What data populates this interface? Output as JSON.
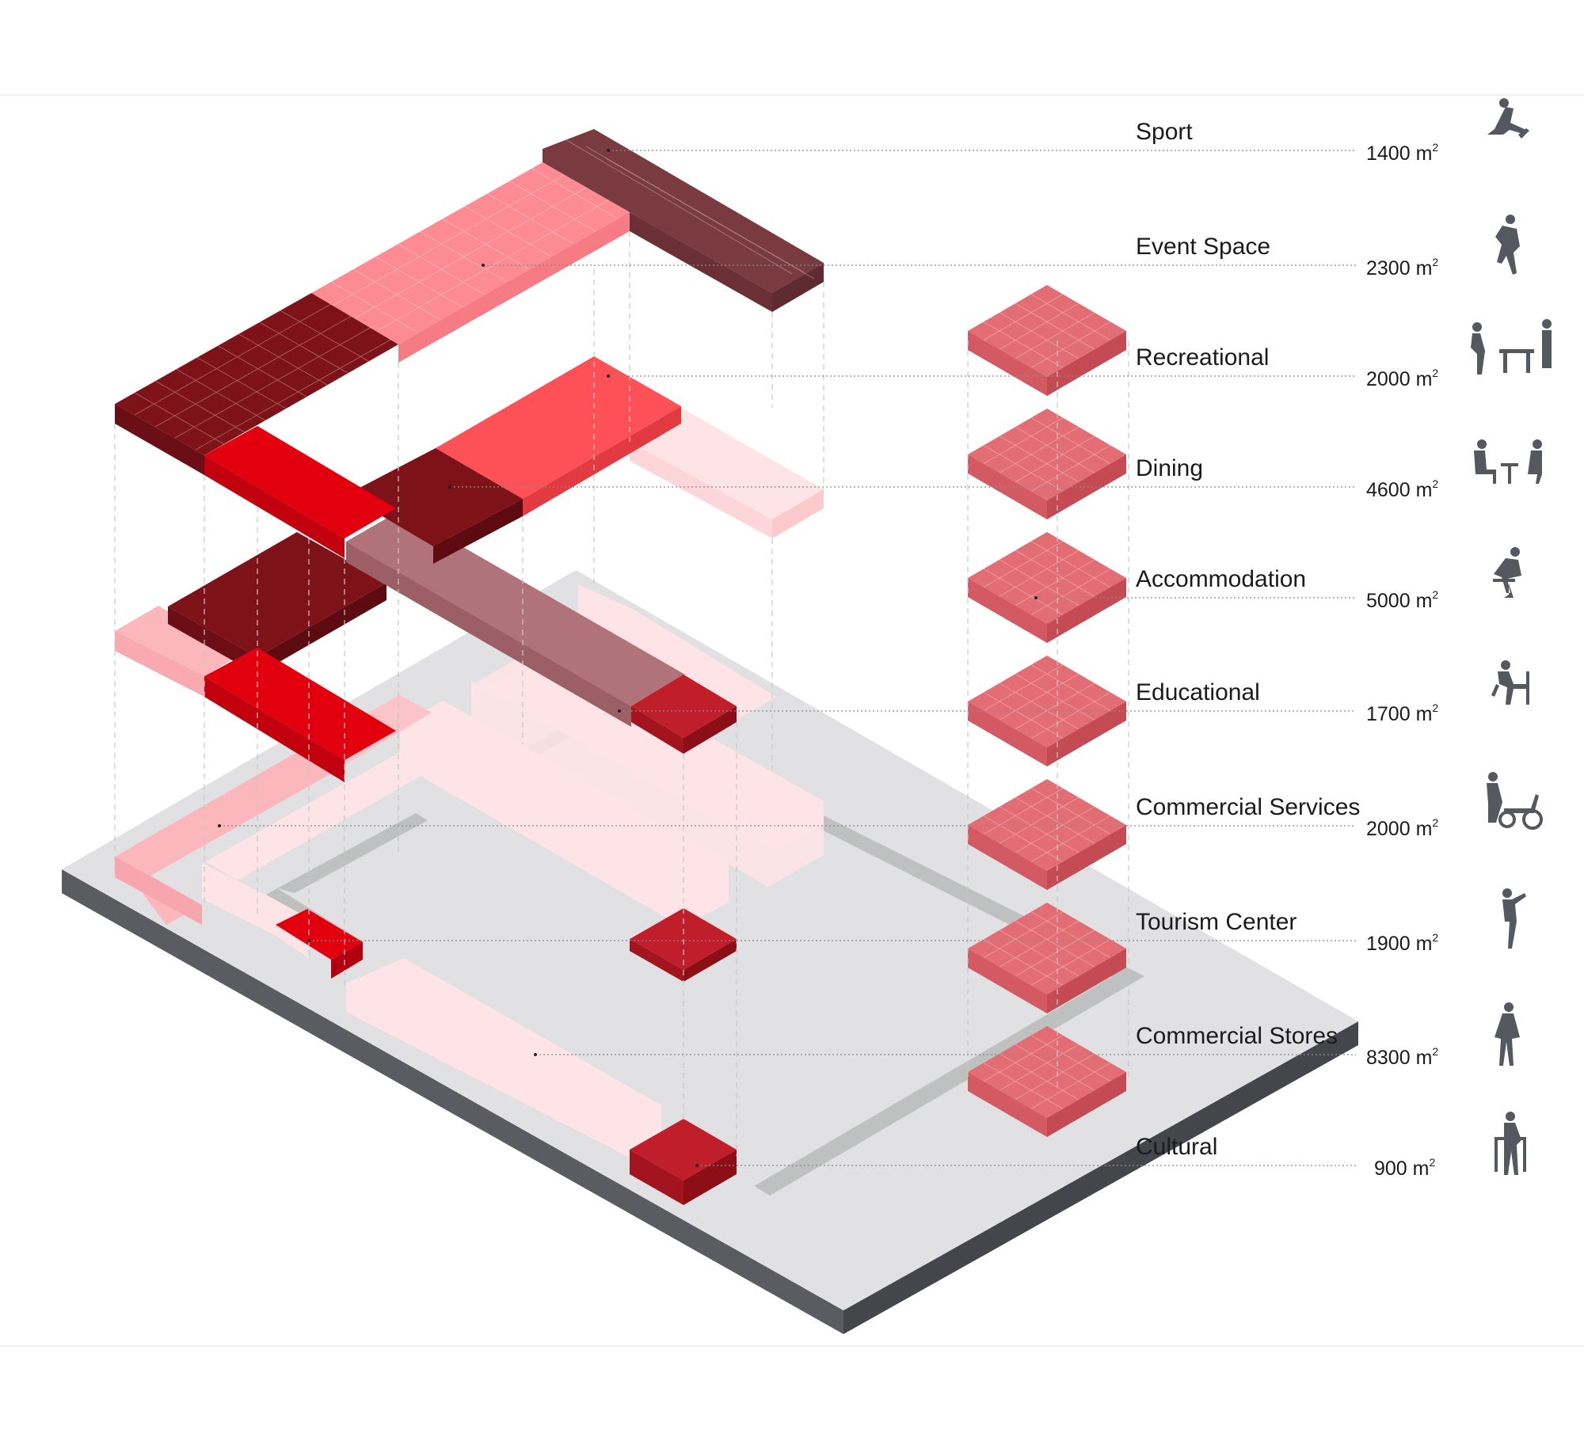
{
  "colors": {
    "site_top": "#e1e1e3",
    "site_side_left": "#5b5c62",
    "site_side_right": "#4a4b51",
    "path_grey": "#bfc0c0",
    "very_light_pink": "#fee4e6",
    "light_pink": "#fbb7bc",
    "salmon_pink": "#fc8b94",
    "bright_red": "#e2000f",
    "coral_red": "#fe5157",
    "maroon": "#7e1219",
    "brown_maroon": "#793a40",
    "mauve": "#b07379",
    "crimson_block": "#b01b26",
    "legend_block": "#e36d74"
  },
  "programs": [
    {
      "name": "Sport",
      "area": "1400",
      "unit": "m",
      "exp": "2",
      "icon": "athlete-icon"
    },
    {
      "name": "Event Space",
      "area": "2300",
      "unit": "m",
      "exp": "2",
      "icon": "dancer-icon"
    },
    {
      "name": "Recreational",
      "area": "2000",
      "unit": "m",
      "exp": "2",
      "icon": "table-game-icon"
    },
    {
      "name": "Dining",
      "area": "4600",
      "unit": "m",
      "exp": "2",
      "icon": "dining-couple-icon"
    },
    {
      "name": "Accommodation",
      "area": "5000",
      "unit": "m",
      "exp": "2",
      "icon": "seated-person-icon"
    },
    {
      "name": "Educational",
      "area": "1700",
      "unit": "m",
      "exp": "2",
      "icon": "student-desk-icon"
    },
    {
      "name": "Commercial Services",
      "area": "2000",
      "unit": "m",
      "exp": "2",
      "icon": "scooter-vendor-icon"
    },
    {
      "name": "Tourism Center",
      "area": "1900",
      "unit": "m",
      "exp": "2",
      "icon": "pointing-person-icon"
    },
    {
      "name": "Commercial Stores",
      "area": "8300",
      "unit": "m",
      "exp": "2",
      "icon": "shopper-icon"
    },
    {
      "name": "Cultural",
      "area": "900",
      "unit": "m",
      "exp": "2",
      "icon": "elder-walker-icon"
    }
  ]
}
